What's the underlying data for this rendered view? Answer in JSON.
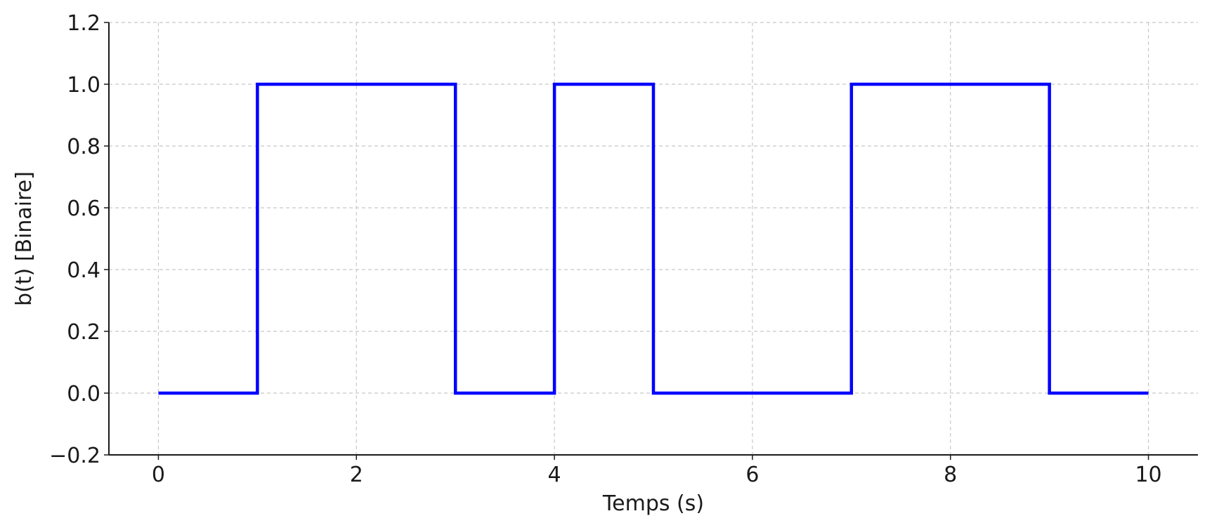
{
  "chart_data": {
    "type": "line",
    "style": "step",
    "xlabel": "Temps (s)",
    "ylabel": "b(t) [Binaire]",
    "xlim": [
      -0.5,
      10.5
    ],
    "ylim": [
      -0.2,
      1.2
    ],
    "grid": true,
    "x_ticks": [
      0,
      2,
      4,
      6,
      8,
      10
    ],
    "x_tick_labels": [
      "0",
      "2",
      "4",
      "6",
      "8",
      "10"
    ],
    "y_ticks": [
      -0.2,
      0.0,
      0.2,
      0.4,
      0.6,
      0.8,
      1.0,
      1.2
    ],
    "y_tick_labels": [
      "−0.2",
      "0.0",
      "0.2",
      "0.4",
      "0.6",
      "0.8",
      "1.0",
      "1.2"
    ],
    "series": [
      {
        "color": "#0000ff",
        "x": [
          0,
          1,
          2,
          3,
          4,
          5,
          6,
          7,
          8,
          9,
          10
        ],
        "values": [
          0,
          1,
          1,
          0,
          1,
          0,
          0,
          1,
          1,
          0,
          0
        ]
      }
    ]
  }
}
